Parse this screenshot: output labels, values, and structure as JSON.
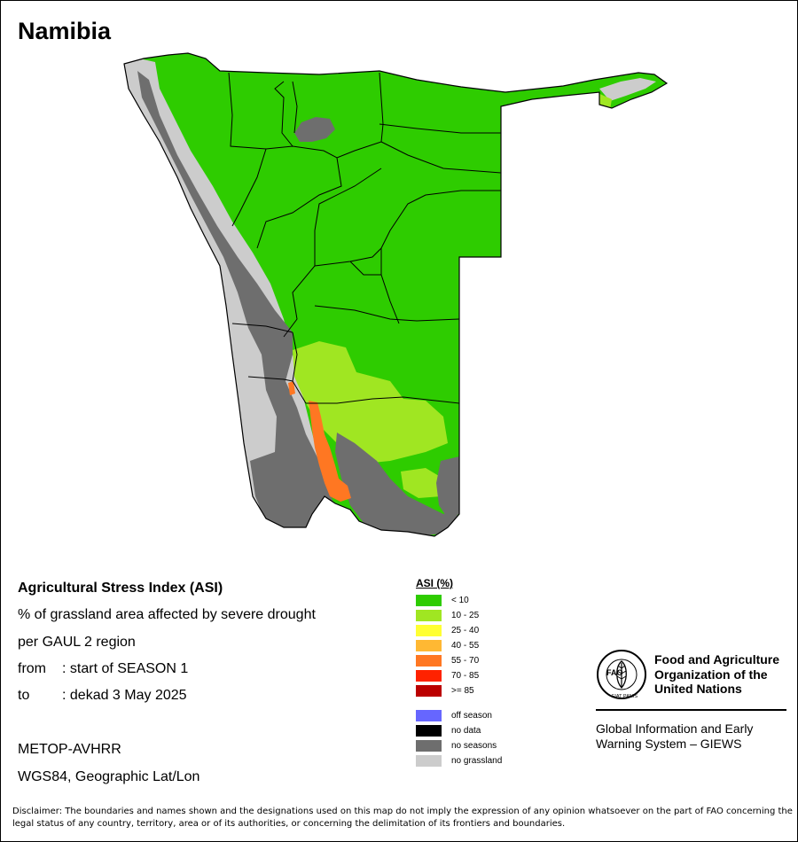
{
  "map": {
    "title": "Namibia",
    "colors": {
      "green": "#2ecc00",
      "light_green": "#a0e622",
      "orange": "#ff7722",
      "dark_gray": "#6e6e6e",
      "light_gray": "#cccccc",
      "border": "#000000"
    }
  },
  "info": {
    "title": "Agricultural Stress Index (ASI)",
    "line1": "% of grassland area affected by severe drought",
    "line2": "per GAUL 2 region",
    "from_label": "from",
    "from_value": ": start of SEASON 1",
    "to_label": "to",
    "to_value": ": dekad 3 May 2025",
    "sensor": "METOP-AVHRR",
    "projection": "WGS84, Geographic Lat/Lon"
  },
  "legend": {
    "title": "ASI (%)",
    "classes": [
      {
        "label": "< 10",
        "color": "#2ecc00"
      },
      {
        "label": "10 - 25",
        "color": "#a0e622"
      },
      {
        "label": "25 - 40",
        "color": "#ffff33"
      },
      {
        "label": "40 - 55",
        "color": "#ffb833"
      },
      {
        "label": "55 - 70",
        "color": "#ff7722"
      },
      {
        "label": "70 - 85",
        "color": "#ff2200"
      },
      {
        "label": ">= 85",
        "color": "#bb0000"
      }
    ],
    "other": [
      {
        "label": "off season",
        "color": "#6666ff"
      },
      {
        "label": "no data",
        "color": "#000000"
      },
      {
        "label": "no seasons",
        "color": "#6e6e6e"
      },
      {
        "label": "no grassland",
        "color": "#cccccc"
      }
    ]
  },
  "fao": {
    "name_line1": "Food and Agriculture",
    "name_line2": "Organization of the",
    "name_line3": "United Nations",
    "logo_text": "FAO",
    "motto": "FIAT PANIS",
    "giews_line1": "Global Information and Early",
    "giews_line2": "Warning System – GIEWS"
  },
  "disclaimer": "Disclaimer: The boundaries and names shown and the designations used on this map do not imply the expression of any opinion whatsoever on the part of FAO concerning the legal status of any country, territory, area or of its authorities, or concerning the delimitation of its frontiers and boundaries."
}
